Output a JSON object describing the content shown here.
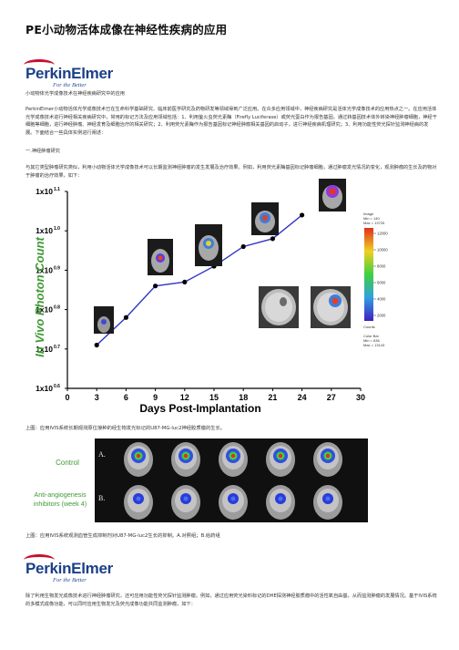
{
  "title": "PE小动物活体成像在神经性疾病的应用",
  "logo": {
    "name": "PerkinElmer",
    "tagline": "For the Better"
  },
  "intro_heading": "小动物体光学成像技术在神经疾病研究中的应用",
  "intro_para": "PerkinElmer小动物活体光学成像技术已在生命科学基础研究、临床前医学研究及药物研发等领域得到广泛应用。在众多应用领域中，神经疾病研究是活体光学成像技术的应用热点之一。在应用活体光学成像技术进行神经相关疾病研究中，常用的标记方法及应用领域包括：1、利用萤火虫荧光素酶（Firefly Luciferase）或荧光蛋白作为报告基因，通过转基因技术体外转染神经肿瘤细胞，神经干细胞等细胞，进行神经肿瘤、神经发育及细胞治疗的相关研究；2、利用荧光素酶作为报告基因标记神经肿瘤相关基因的启动子，进行神经疾病机理研究；3、利用功能性荧光探针监测神经病的发展。下面结合一些具体实例进行阐述：",
  "section1_heading": "一.神经肿瘤研究",
  "section1_para": "与其它类型肿瘤研究类似，利用小动物活体光学成像技术可以长期监测神经肿瘤的发生发展及治疗效果。例如，利用荧光素酶基因标记肿瘤细胞，通过肿瘤发光情况的变化，观测肿瘤的生长及药物对于肿瘤的治疗效果，如下：",
  "caption1": "上图：应用IVIS系统长期观测原位接种的经生物发光标记的U87-MG-luc2神经胶质瘤的生长。",
  "caption2": "上图：应用IVIS系统观测血管生成抑制剂对U87-MG-luc2生长的抑制。A.对照组；B.给药组",
  "bottom_para": "除了利用生物发光成像技术进行神经肿瘤研究，还可应用功能性荧光探针监测肿瘤。例如，通过应用荧光染料标记的DHE探测神经胶质瘤中的活性氧自由基，从而监测肿瘤的发展情况。基于IVIS系统的多模式成像功能，可以同时应用生物发光及荧光成像功能共同监测肿瘤，如下：",
  "colorbar": {
    "header": [
      "Image",
      "Min = 140",
      "Max = 13725"
    ],
    "ticks": [
      "12000",
      "10000",
      "8000",
      "6000",
      "4000",
      "2000"
    ],
    "units": "Counts",
    "footer": [
      "Color Bar",
      "Min = 636",
      "Max = 13143"
    ]
  },
  "treatment": {
    "control": "Control",
    "control_tag": "A.",
    "anti": [
      "Anti-angiogenesis",
      "inhibitors (week 4)"
    ],
    "anti_tag": "B."
  },
  "colors": {
    "line": "#2f35c4",
    "axis": "#000000",
    "title_text": "#111111",
    "green_label": "#3f9a34",
    "logo_blue": "#1b3f8a"
  },
  "chart_data": {
    "type": "line",
    "xlabel": "Days Post-Implantation",
    "ylabel": "In Vivo Photon Count",
    "xlim": [
      0,
      30
    ],
    "x_ticks": [
      "0",
      "3",
      "6",
      "9",
      "12",
      "15",
      "18",
      "21",
      "24",
      "27",
      "30"
    ],
    "y_ticks": [
      {
        "base": "1x10",
        "exp": "0.6"
      },
      {
        "base": "1x10",
        "exp": "0.7"
      },
      {
        "base": "1x10",
        "exp": "0.8"
      },
      {
        "base": "1x10",
        "exp": "0.9"
      },
      {
        "base": "1x10",
        "exp": "1.0"
      },
      {
        "base": "1x10",
        "exp": "1.1"
      }
    ],
    "ylim_log10_exponent": [
      0.6,
      1.1
    ],
    "series": [
      {
        "x": [
          3,
          6,
          9,
          12,
          15,
          18,
          21,
          24
        ],
        "y_exponent": [
          0.71,
          0.78,
          0.86,
          0.87,
          0.91,
          0.96,
          0.98,
          1.04
        ]
      }
    ]
  }
}
